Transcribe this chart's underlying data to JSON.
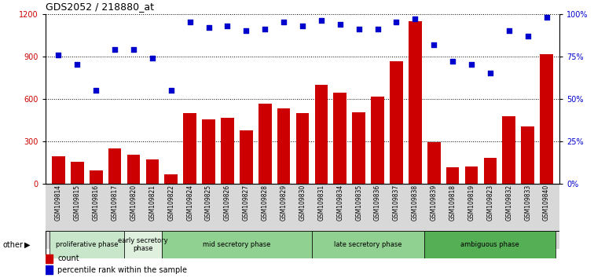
{
  "title": "GDS2052 / 218880_at",
  "samples": [
    "GSM109814",
    "GSM109815",
    "GSM109816",
    "GSM109817",
    "GSM109820",
    "GSM109821",
    "GSM109822",
    "GSM109824",
    "GSM109825",
    "GSM109826",
    "GSM109827",
    "GSM109828",
    "GSM109829",
    "GSM109830",
    "GSM109831",
    "GSM109834",
    "GSM109835",
    "GSM109836",
    "GSM109837",
    "GSM109838",
    "GSM109839",
    "GSM109818",
    "GSM109819",
    "GSM109823",
    "GSM109832",
    "GSM109833",
    "GSM109840"
  ],
  "counts": [
    195,
    155,
    90,
    250,
    205,
    170,
    65,
    500,
    455,
    465,
    375,
    565,
    530,
    500,
    700,
    645,
    505,
    615,
    865,
    1150,
    295,
    115,
    120,
    180,
    475,
    405,
    915
  ],
  "percentiles": [
    76,
    70,
    55,
    79,
    79,
    74,
    55,
    95,
    92,
    93,
    90,
    91,
    95,
    93,
    96,
    94,
    91,
    91,
    95,
    97,
    82,
    72,
    70,
    65,
    90,
    87,
    98
  ],
  "phase_groups": [
    {
      "label": "proliferative phase",
      "start": 0,
      "end": 4,
      "color": "#c8e6c9"
    },
    {
      "label": "early secretory\nphase",
      "start": 4,
      "end": 6,
      "color": "#dff0df"
    },
    {
      "label": "mid secretory phase",
      "start": 6,
      "end": 14,
      "color": "#90d090"
    },
    {
      "label": "late secretory phase",
      "start": 14,
      "end": 20,
      "color": "#90d090"
    },
    {
      "label": "ambiguous phase",
      "start": 20,
      "end": 27,
      "color": "#55b055"
    }
  ],
  "bar_color": "#cc0000",
  "dot_color": "#0000cc",
  "ylim_left": [
    0,
    1200
  ],
  "ylim_right": [
    0,
    100
  ],
  "yticks_left": [
    0,
    300,
    600,
    900,
    1200
  ],
  "yticks_right": [
    0,
    25,
    50,
    75,
    100
  ],
  "xtick_bg": "#d0d0d0"
}
